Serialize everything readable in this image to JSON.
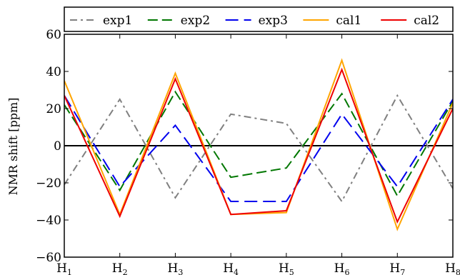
{
  "chart_data": {
    "type": "line",
    "categories": [
      {
        "base": "H",
        "sub": "1"
      },
      {
        "base": "H",
        "sub": "2"
      },
      {
        "base": "H",
        "sub": "3"
      },
      {
        "base": "H",
        "sub": "4"
      },
      {
        "base": "H",
        "sub": "5"
      },
      {
        "base": "H",
        "sub": "6"
      },
      {
        "base": "H",
        "sub": "7"
      },
      {
        "base": "H",
        "sub": "8"
      }
    ],
    "series": [
      {
        "name": "exp1",
        "color": "#808080",
        "dash": "dashdot",
        "values": [
          -21,
          25,
          -28,
          17,
          12,
          -30,
          27,
          -23
        ]
      },
      {
        "name": "exp2",
        "color": "#007700",
        "dash": "dashed",
        "values": [
          22,
          -24,
          29,
          -17,
          -12,
          28,
          -27,
          24
        ]
      },
      {
        "name": "exp3",
        "color": "#0000ee",
        "dash": "dashed-long",
        "values": [
          27,
          -22,
          11,
          -30,
          -30,
          17,
          -22,
          25
        ]
      },
      {
        "name": "cal1",
        "color": "#ffa500",
        "dash": "solid",
        "values": [
          35,
          -37,
          39,
          -37,
          -36,
          46,
          -45,
          23
        ]
      },
      {
        "name": "cal2",
        "color": "#ee0000",
        "dash": "solid",
        "values": [
          27,
          -38,
          36,
          -37,
          -35,
          41,
          -41,
          20
        ]
      }
    ],
    "title": "",
    "xlabel": "",
    "ylabel": "NMR shift [ppm]",
    "ylim": [
      -60,
      60
    ],
    "yticks": [
      "60",
      "40",
      "20",
      "0",
      "−20",
      "−40",
      "−60"
    ],
    "grid": false,
    "zero_line": true,
    "legend_position": "top, above plot"
  }
}
